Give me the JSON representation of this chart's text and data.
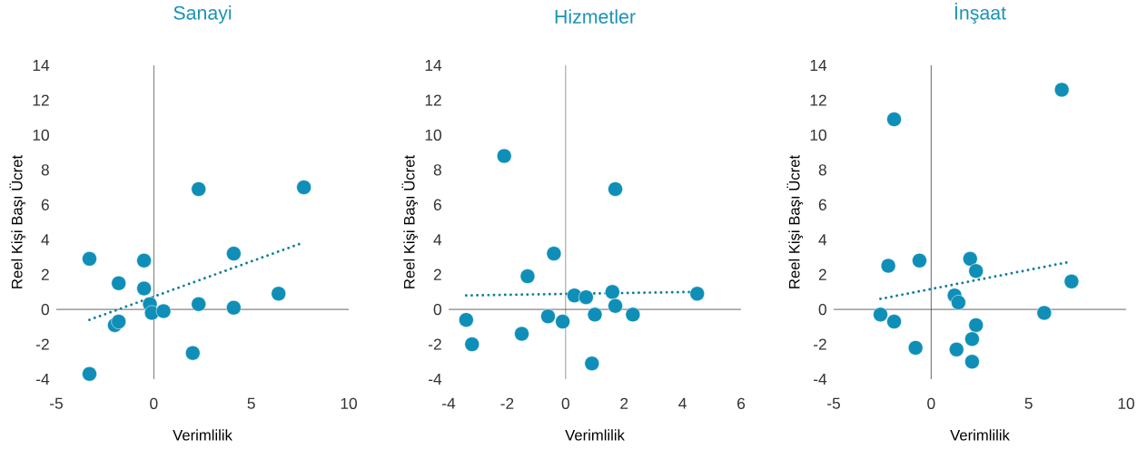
{
  "chart_data": [
    {
      "type": "scatter",
      "title": "Sanayi",
      "xlabel": "Verimlilik",
      "ylabel": "Reel Kişi Başı Ücret",
      "xlim": [
        -5,
        10
      ],
      "xticks": [
        -5,
        0,
        5,
        10
      ],
      "ylim": [
        -4,
        14
      ],
      "yticks": [
        -4,
        -2,
        0,
        2,
        4,
        6,
        8,
        10,
        12,
        14
      ],
      "series": [
        {
          "type": "scatter",
          "marker": "circle",
          "color": "#0f8fb8",
          "x": [
            -3.3,
            -3.3,
            -0.5,
            -1.8,
            -0.5,
            -0.2,
            -0.1,
            0.5,
            -2.0,
            -1.8,
            2.3,
            2.3,
            2.0,
            4.1,
            4.1,
            6.4,
            7.7
          ],
          "values": [
            2.9,
            -3.7,
            2.8,
            1.5,
            1.2,
            0.3,
            -0.2,
            -0.1,
            -0.9,
            -0.7,
            6.9,
            0.3,
            -2.5,
            3.2,
            0.1,
            0.9,
            7.0
          ]
        },
        {
          "type": "line",
          "marker": "none",
          "line_style": "dotted",
          "color": "#0b7f99",
          "x": [
            -3.3,
            7.6
          ],
          "values": [
            -0.6,
            3.8
          ]
        }
      ]
    },
    {
      "type": "scatter",
      "title": "Hizmetler",
      "xlabel": "Verimlilik",
      "ylabel": "Reel Kişi Başı Ücret",
      "xlim": [
        -4,
        6
      ],
      "xticks": [
        -4,
        -2,
        0,
        2,
        4,
        6
      ],
      "ylim": [
        -4,
        14
      ],
      "yticks": [
        -4,
        -2,
        0,
        2,
        4,
        6,
        8,
        10,
        12,
        14
      ],
      "series": [
        {
          "type": "scatter",
          "marker": "circle",
          "color": "#0f8fb8",
          "x": [
            -2.1,
            1.7,
            -0.4,
            -1.3,
            0.3,
            0.7,
            1.6,
            1.7,
            4.5,
            -3.4,
            -3.2,
            -1.5,
            -0.6,
            -0.1,
            1.0,
            2.3,
            0.9
          ],
          "values": [
            8.8,
            6.9,
            3.2,
            1.9,
            0.8,
            0.7,
            1.0,
            0.2,
            0.9,
            -0.6,
            -2.0,
            -1.4,
            -0.4,
            -0.7,
            -0.3,
            -0.3,
            -3.1
          ]
        },
        {
          "type": "line",
          "marker": "none",
          "line_style": "dotted",
          "color": "#0b7f99",
          "x": [
            -3.4,
            4.4
          ],
          "values": [
            0.8,
            1.0
          ]
        }
      ]
    },
    {
      "type": "scatter",
      "title": "İnşaat",
      "xlabel": "Verimlilik",
      "ylabel": "Reel Kişi Başı Ücret",
      "xlim": [
        -5,
        10
      ],
      "xticks": [
        -5,
        0,
        5,
        10
      ],
      "ylim": [
        -4,
        14
      ],
      "yticks": [
        -4,
        -2,
        0,
        2,
        4,
        6,
        8,
        10,
        12,
        14
      ],
      "series": [
        {
          "type": "scatter",
          "marker": "circle",
          "color": "#0f8fb8",
          "x": [
            6.7,
            -1.9,
            -2.2,
            -0.6,
            2.0,
            2.3,
            7.2,
            1.2,
            1.4,
            5.8,
            -2.6,
            -1.9,
            2.3,
            2.1,
            -0.8,
            1.3,
            2.1
          ],
          "values": [
            12.6,
            10.9,
            2.5,
            2.8,
            2.9,
            2.2,
            1.6,
            0.8,
            0.4,
            -0.2,
            -0.3,
            -0.7,
            -0.9,
            -1.7,
            -2.2,
            -2.3,
            -3.0
          ]
        },
        {
          "type": "line",
          "marker": "none",
          "line_style": "dotted",
          "color": "#0b7f99",
          "x": [
            -2.6,
            7.0
          ],
          "values": [
            0.6,
            2.7
          ]
        }
      ]
    }
  ]
}
